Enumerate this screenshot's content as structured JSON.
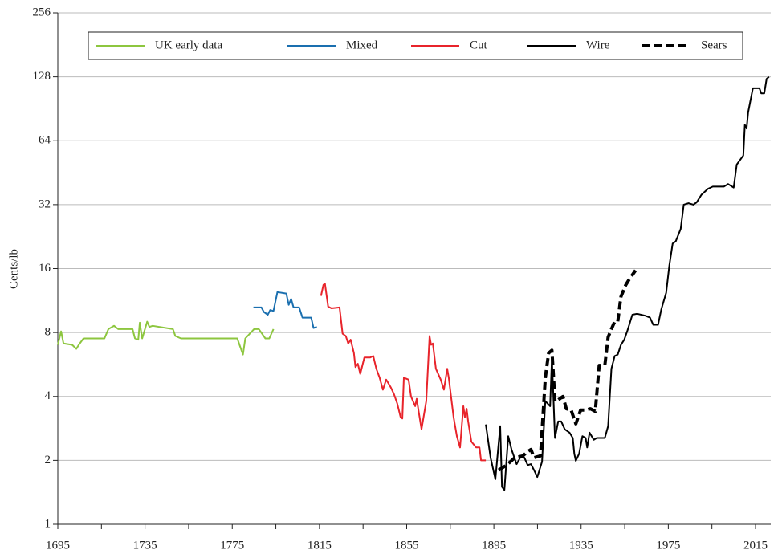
{
  "chart_data": {
    "type": "line",
    "y_label": "Cents/lb",
    "log_scale_y": true,
    "grid": true,
    "legend": "top",
    "xlim": [
      1695,
      2022
    ],
    "xticks": [
      1695,
      1735,
      1775,
      1815,
      1855,
      1895,
      1935,
      1975,
      2015
    ],
    "xminor_ticks": [
      1715,
      1755,
      1795,
      1835,
      1875,
      1915,
      1955,
      1995
    ],
    "ylim": [
      1,
      256
    ],
    "yticks": [
      1,
      2,
      4,
      8,
      16,
      32,
      64,
      128,
      256
    ],
    "series": [
      {
        "name": "UK early data",
        "color": "#8dc63f",
        "line_style": "solid",
        "x": [
          1695,
          1696.5,
          1697.6,
          1701.6,
          1703.5,
          1704.6,
          1706.8,
          1716.4,
          1718.2,
          1720.8,
          1722.7,
          1723.8,
          1729.3,
          1730.4,
          1731.9,
          1732.6,
          1733.7,
          1736,
          1737,
          1738.5,
          1747.8,
          1748.9,
          1751.5,
          1777.3,
          1779.9,
          1781,
          1785,
          1787.2,
          1790.2,
          1792,
          1793.9
        ],
        "values": [
          7.0,
          8.1,
          7.1,
          7.0,
          6.7,
          7.0,
          7.5,
          7.5,
          8.3,
          8.6,
          8.3,
          8.3,
          8.3,
          7.5,
          7.4,
          8.9,
          7.5,
          9.0,
          8.5,
          8.6,
          8.3,
          7.7,
          7.5,
          7.5,
          6.3,
          7.5,
          8.3,
          8.3,
          7.5,
          7.5,
          8.3
        ]
      },
      {
        "name": "Mixed",
        "color": "#1a6faf",
        "line_style": "solid",
        "x": [
          1784.7,
          1788.4,
          1789.5,
          1791.3,
          1792.4,
          1793.9,
          1795.7,
          1799.8,
          1800.9,
          1802,
          1803.1,
          1805.7,
          1807.2,
          1811.2,
          1812.3,
          1813.8
        ],
        "values": [
          10.5,
          10.5,
          10.0,
          9.7,
          10.2,
          10.1,
          12.4,
          12.2,
          10.8,
          11.5,
          10.5,
          10.5,
          9.4,
          9.4,
          8.4,
          8.5
        ]
      },
      {
        "name": "Cut",
        "color": "#e8242b",
        "line_style": "solid",
        "x": [
          1815.7,
          1816.8,
          1817.5,
          1819,
          1820.5,
          1824.2,
          1825.6,
          1827.1,
          1828.2,
          1829.3,
          1830.8,
          1831.5,
          1832.6,
          1833.7,
          1835.6,
          1838.2,
          1839.7,
          1841.1,
          1842.6,
          1844.1,
          1845.6,
          1847.8,
          1849.2,
          1850.7,
          1852.2,
          1853,
          1853.7,
          1855.9,
          1857,
          1858.9,
          1859.6,
          1860.3,
          1861.8,
          1864,
          1865.5,
          1866.2,
          1867,
          1868.4,
          1870.6,
          1872.1,
          1873.6,
          1874.3,
          1876.5,
          1878,
          1879.5,
          1881,
          1881.7,
          1882.5,
          1883.2,
          1884.7,
          1886.9,
          1888.4,
          1889.1,
          1891.3
        ],
        "values": [
          11.9,
          13.4,
          13.6,
          10.6,
          10.4,
          10.5,
          7.9,
          7.7,
          7.1,
          7.4,
          6.4,
          5.5,
          5.7,
          5.1,
          6.1,
          6.1,
          6.2,
          5.4,
          4.9,
          4.3,
          4.8,
          4.4,
          4.1,
          3.7,
          3.2,
          3.15,
          4.9,
          4.8,
          4.0,
          3.6,
          3.9,
          3.5,
          2.8,
          3.8,
          7.7,
          7.0,
          7.1,
          5.4,
          4.8,
          4.3,
          5.4,
          4.9,
          3.2,
          2.6,
          2.3,
          3.6,
          3.2,
          3.5,
          3.05,
          2.45,
          2.3,
          2.3,
          2.0,
          2.0
        ]
      },
      {
        "name": "Wire",
        "color": "#000000",
        "line_style": "solid",
        "x": [
          1891.3,
          1893.5,
          1895.7,
          1897.9,
          1898.7,
          1899.8,
          1901.6,
          1903.1,
          1905.4,
          1907.5,
          1909,
          1910.5,
          1912,
          1913.4,
          1914.9,
          1915.6,
          1917.1,
          1918.6,
          1920.8,
          1921.6,
          1923,
          1924.5,
          1925.9,
          1927.5,
          1929.7,
          1931.2,
          1931.9,
          1932.6,
          1934.1,
          1935.6,
          1937.1,
          1937.8,
          1938.9,
          1940.8,
          1942.2,
          1945.9,
          1947.4,
          1948.9,
          1950.4,
          1951.8,
          1953.3,
          1954.8,
          1956.3,
          1958.5,
          1960.7,
          1964.4,
          1966.6,
          1968.1,
          1970.3,
          1971.8,
          1974,
          1975.5,
          1977,
          1978.4,
          1980.7,
          1982.1,
          1984.3,
          1986.5,
          1988,
          1990.2,
          1993.2,
          1995.4,
          2000.5,
          2002.4,
          2005,
          2006.4,
          2009.4,
          2010.1,
          2010.9,
          2011.6,
          2013.8,
          2016.8,
          2017.6,
          2019,
          2020.1,
          2021.2
        ],
        "values": [
          2.95,
          2.06,
          1.63,
          2.9,
          1.5,
          1.45,
          2.6,
          2.25,
          1.92,
          2.1,
          2.06,
          1.9,
          1.92,
          1.8,
          1.67,
          1.76,
          1.97,
          3.8,
          3.6,
          6.1,
          2.55,
          3.05,
          3.05,
          2.8,
          2.7,
          2.55,
          2.15,
          1.99,
          2.15,
          2.6,
          2.55,
          2.3,
          2.7,
          2.5,
          2.55,
          2.55,
          2.9,
          5.4,
          6.2,
          6.3,
          7.0,
          7.4,
          8.2,
          9.7,
          9.8,
          9.6,
          9.4,
          8.7,
          8.7,
          10.3,
          12.3,
          16.6,
          21,
          21.5,
          24.6,
          32,
          32.5,
          32,
          32.8,
          35.6,
          38,
          38.9,
          38.9,
          40,
          38.5,
          49.4,
          54.5,
          76,
          73,
          87,
          113,
          113,
          107,
          107,
          125,
          128
        ]
      },
      {
        "name": "Sears",
        "color": "#000000",
        "line_style": "dashed",
        "x": [
          1897.2,
          1900.9,
          1904.6,
          1908.3,
          1910.5,
          1912,
          1913.4,
          1916.4,
          1918.6,
          1920.1,
          1921.6,
          1923,
          1924.5,
          1926.7,
          1928.2,
          1930.4,
          1932.6,
          1934.8,
          1937.1,
          1939.3,
          1941.5,
          1943.3,
          1945.9,
          1947.4,
          1948.9,
          1950.4,
          1951.8,
          1953.3,
          1955.5,
          1957,
          1960
        ],
        "values": [
          1.8,
          1.9,
          2.06,
          2.1,
          2.2,
          2.25,
          2.06,
          2.1,
          4.9,
          6.4,
          6.6,
          3.8,
          3.85,
          4.0,
          3.5,
          3.45,
          2.97,
          3.45,
          3.45,
          3.5,
          3.4,
          5.6,
          5.6,
          7.6,
          8.3,
          9.0,
          9.0,
          11.8,
          13.4,
          14.2,
          15.7
        ]
      }
    ]
  }
}
